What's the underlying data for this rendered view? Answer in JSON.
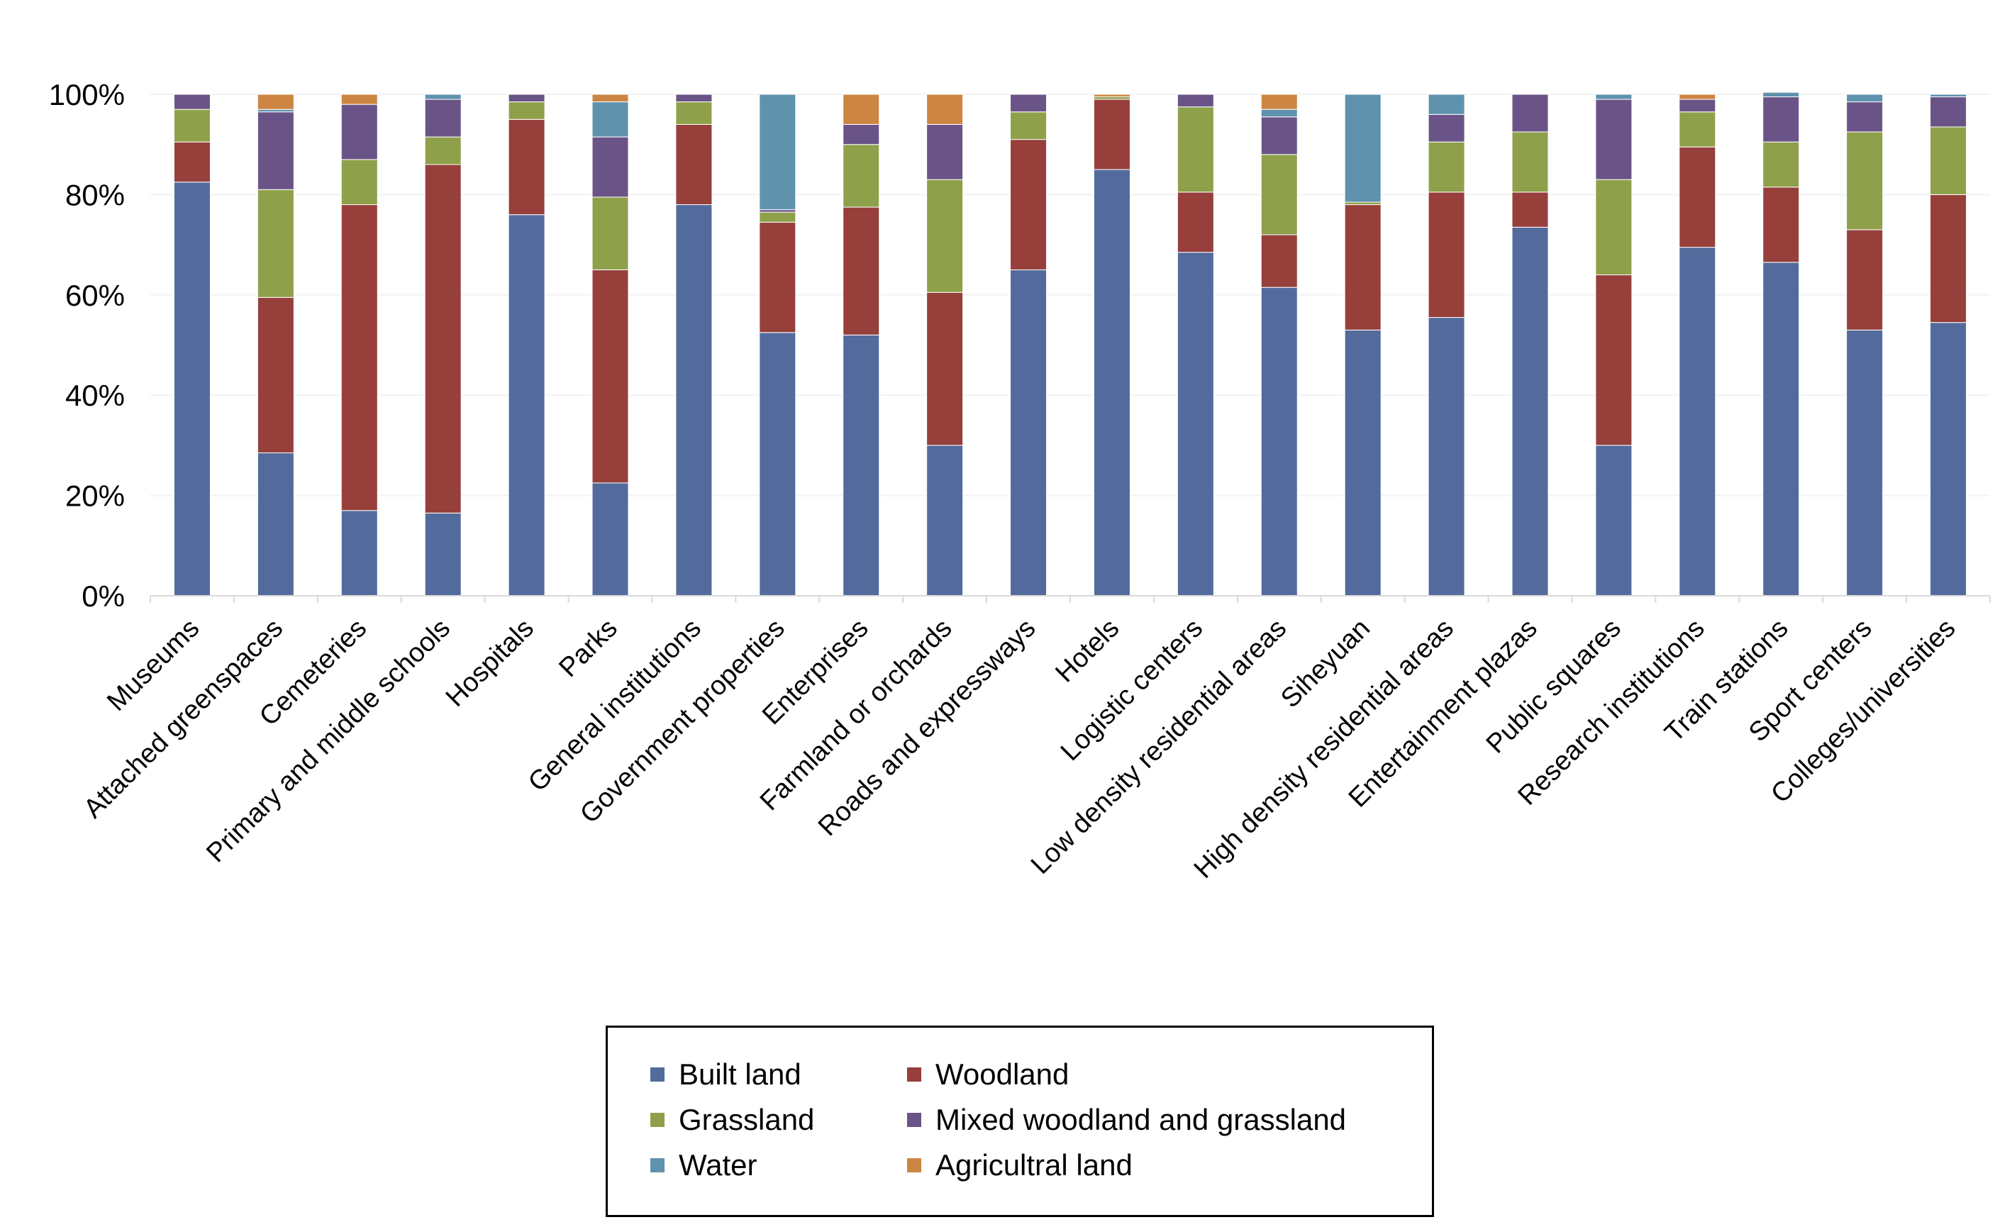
{
  "chart_data": {
    "type": "bar",
    "stacked": "percent",
    "categories": [
      "Museums",
      "Attached greenspaces",
      "Cemeteries",
      "Primary and middle schools",
      "Hospitals",
      "Parks",
      "General institutions",
      "Government properties",
      "Enterprises",
      "Farmland or orchards",
      "Roads and expressways",
      "Hotels",
      "Logistic centers",
      "Low density residential areas",
      "Siheyuan",
      "High density residential areas",
      "Entertainment plazas",
      "Public squares",
      "Research institutions",
      "Train stations",
      "Sport centers",
      "Colleges/universities"
    ],
    "ylim": [
      0,
      100
    ],
    "yticks": [
      "0%",
      "20%",
      "40%",
      "60%",
      "80%",
      "100%"
    ],
    "grid": false,
    "legend_position": "bottom",
    "series": [
      {
        "name": "Built land",
        "color": "#536b9c",
        "values": [
          82.5,
          28.5,
          17,
          16.5,
          76,
          22.5,
          78,
          52.5,
          52,
          30,
          65,
          85,
          68.5,
          61.5,
          53,
          55.5,
          73.5,
          30,
          69.5,
          66.5,
          53,
          54.5
        ]
      },
      {
        "name": "Woodland",
        "color": "#963f3b",
        "values": [
          8,
          31,
          61,
          69.5,
          19,
          42.5,
          16,
          22,
          25.5,
          30.5,
          26,
          14,
          12,
          10.5,
          25,
          25,
          7,
          34,
          20,
          15,
          20,
          25.5
        ]
      },
      {
        "name": "Grassland",
        "color": "#8fa04a",
        "values": [
          6.5,
          21.5,
          9,
          5.5,
          3.5,
          14.5,
          4.5,
          2,
          12.5,
          22.5,
          5.5,
          0.5,
          17,
          16,
          0.5,
          10,
          12,
          19,
          7,
          9,
          19.5,
          13.5
        ]
      },
      {
        "name": "Mixed woodland and grassland",
        "color": "#6a5487",
        "values": [
          3,
          15.5,
          11,
          7.5,
          1.5,
          12,
          1.5,
          0.5,
          4,
          11,
          3.5,
          0,
          2.5,
          7.5,
          0,
          5.5,
          7.5,
          16,
          2.5,
          9,
          6,
          6
        ]
      },
      {
        "name": "Water",
        "color": "#5f92ad",
        "values": [
          0,
          0.5,
          0,
          1,
          0,
          7,
          0,
          23,
          0,
          0,
          0,
          0,
          0,
          1.5,
          21.5,
          4,
          0,
          1,
          0,
          0.9,
          1.5,
          0.5
        ]
      },
      {
        "name": "Agricultral land",
        "color": "#cc8542",
        "values": [
          0,
          3,
          2,
          0,
          0,
          1.5,
          0,
          0,
          6,
          6,
          0,
          0.5,
          0,
          3,
          0,
          0,
          0,
          0,
          1,
          0,
          0,
          0
        ]
      }
    ]
  }
}
